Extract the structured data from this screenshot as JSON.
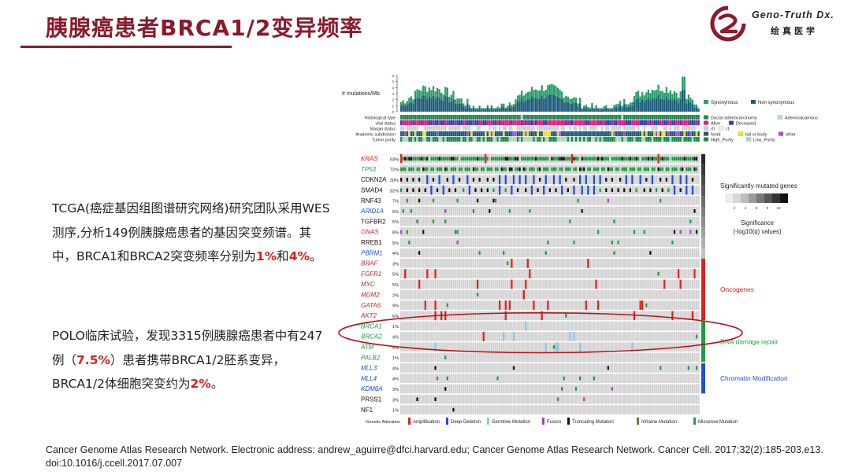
{
  "slide": {
    "title": "胰腺癌患者BRCA1/2变异频率",
    "logo_name": "Geno-Truth Dx.",
    "logo_cn": "绘真医学",
    "logo_color": "#8b1a2b",
    "paragraph1": {
      "pre": "TCGA(癌症基因组图谱研究网络)研究团队采用WES测序,分析149例胰腺癌患者的基因突变频谱。其中，BRCA1和BRCA2突变频率分别为",
      "val1": "1%",
      "mid": "和",
      "val2": "4%",
      "post": "。"
    },
    "paragraph2": {
      "pre": "POLO临床试验，发现3315例胰腺癌患者中有247例（",
      "val1": "7.5%",
      "mid": "）患者携带BRCA1/2胚系变异，BRCA1/2体细胞突变约为",
      "val2": "2%",
      "post": "。"
    },
    "citation": "Cancer Genome Atlas Research Network. Electronic address: andrew_aguirre@dfci.harvard.edu; Cancer Genome Atlas Research Network. Cancer Cell. 2017;32(2):185-203.e13. doi:10.1016/j.ccell.2017.07.007"
  },
  "chart_data": {
    "type": "oncoprint",
    "n_samples": 149,
    "tmb_axis_label": "# mutations/Mb",
    "tmb_ticks": [
      0,
      1,
      2,
      3,
      4,
      5,
      6
    ],
    "tmb_legend": [
      "Synonymous",
      "Non synonymous"
    ],
    "clinical_tracks": [
      "Histological type",
      "vital status",
      "Margin status",
      "Anatomic subdivision",
      "Tumor purity"
    ],
    "clinical_legend": [
      [
        "Ductal adenocarcinoma",
        "Adenosquamous"
      ],
      [
        "Alive",
        "Deceased"
      ],
      [
        "r0",
        "r1"
      ],
      [
        "head",
        "tail or body",
        "other"
      ],
      [
        "High_Purity",
        "Low_Purity"
      ]
    ],
    "genes": [
      {
        "gene": "KRAS",
        "pct": "93%",
        "group": "smg",
        "color": "#e0201b"
      },
      {
        "gene": "TP53",
        "pct": "72%",
        "group": "smg",
        "color": "#1a9e3f"
      },
      {
        "gene": "CDKN2A",
        "pct": "30%",
        "group": "smg",
        "color": "#111111"
      },
      {
        "gene": "SMAD4",
        "pct": "32%",
        "group": "smg",
        "color": "#111111"
      },
      {
        "gene": "RNF43",
        "pct": "7%",
        "group": "smg",
        "color": "#111111"
      },
      {
        "gene": "ARID1A",
        "pct": "6%",
        "group": "smg",
        "color": "#1f4fd6"
      },
      {
        "gene": "TGFBR2",
        "pct": "5%",
        "group": "smg",
        "color": "#111111"
      },
      {
        "gene": "GNAS",
        "pct": "8%",
        "group": "smg",
        "color": "#e0201b"
      },
      {
        "gene": "RREB1",
        "pct": "5%",
        "group": "smg",
        "color": "#111111"
      },
      {
        "gene": "PBRM1",
        "pct": "4%",
        "group": "smg",
        "color": "#1f4fd6"
      },
      {
        "gene": "BRAF",
        "pct": "3%",
        "group": "onc",
        "color": "#e0201b"
      },
      {
        "gene": "FGFR1",
        "pct": "5%",
        "group": "onc",
        "color": "#e0201b"
      },
      {
        "gene": "MYC",
        "pct": "5%",
        "group": "onc",
        "color": "#e0201b"
      },
      {
        "gene": "MDM2",
        "pct": "2%",
        "group": "onc",
        "color": "#e0201b"
      },
      {
        "gene": "GATA6",
        "pct": "9%",
        "group": "onc",
        "color": "#e0201b"
      },
      {
        "gene": "AKT2",
        "pct": "6%",
        "group": "onc",
        "color": "#e0201b"
      },
      {
        "gene": "BRCA1",
        "pct": "1%",
        "group": "ddr",
        "color": "#1a9e3f"
      },
      {
        "gene": "BRCA2",
        "pct": "4%",
        "group": "ddr",
        "color": "#1a9e3f"
      },
      {
        "gene": "ATM",
        "pct": "5%",
        "group": "ddr",
        "color": "#1a9e3f"
      },
      {
        "gene": "PALB2",
        "pct": "1%",
        "group": "ddr",
        "color": "#1a9e3f"
      },
      {
        "gene": "MLL3",
        "pct": "4%",
        "group": "chr",
        "color": "#1f4fd6"
      },
      {
        "gene": "MLL4",
        "pct": "4%",
        "group": "chr",
        "color": "#1f4fd6"
      },
      {
        "gene": "KDM6A",
        "pct": "3%",
        "group": "chr",
        "color": "#1f4fd6"
      },
      {
        "gene": "PRSS1",
        "pct": "3%",
        "group": "oth",
        "color": "#111111"
      },
      {
        "gene": "NF1",
        "pct": "1%",
        "group": "oth",
        "color": "#111111"
      }
    ],
    "groups": [
      {
        "key": "smg",
        "label": "",
        "bar_color": "#444444"
      },
      {
        "key": "onc",
        "label": "Oncogenes",
        "bar_color": "#e0201b"
      },
      {
        "key": "ddr",
        "label": "DNA damage repair",
        "bar_color": "#1a9e3f"
      },
      {
        "key": "chr",
        "label": "Chromatin Modification",
        "bar_color": "#1f4fd6"
      }
    ],
    "significance_title": "Significantly mutated genes",
    "significance_ticks": [
      "2",
      "4",
      "6",
      "8",
      "10"
    ],
    "significance_label": "Significance\n(-log10(q) values)",
    "alteration_legend_title": "Genetic Alteration",
    "alteration_legend": [
      {
        "label": "Amplification",
        "color": "#e0201b"
      },
      {
        "label": "Deep Deletion",
        "color": "#1f4fd6"
      },
      {
        "label": "Germline Mutation",
        "color": "#8fc3e6"
      },
      {
        "label": "Fusion",
        "color": "#b23cc8"
      },
      {
        "label": "Truncating Mutation",
        "color": "#111111"
      },
      {
        "label": "Inframe Mutation",
        "color": "#8b6a3a"
      },
      {
        "label": "Missense Mutation",
        "color": "#1a9e3f"
      }
    ],
    "highlight": {
      "genes": [
        "BRCA1",
        "BRCA2"
      ],
      "color": "#c0101a"
    }
  }
}
